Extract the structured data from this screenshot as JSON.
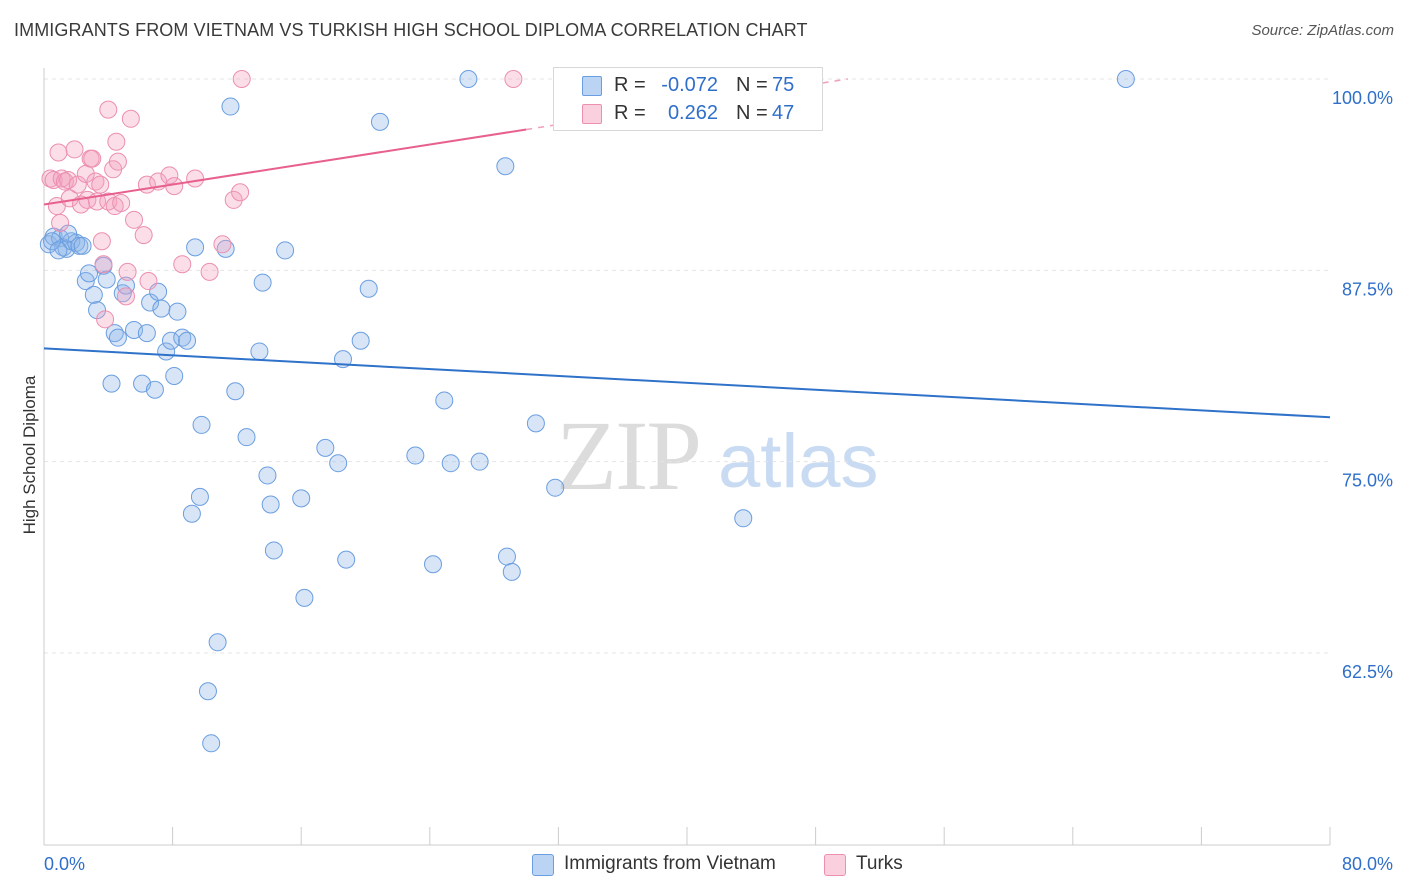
{
  "header": {
    "title": "IMMIGRANTS FROM VIETNAM VS TURKISH HIGH SCHOOL DIPLOMA CORRELATION CHART",
    "source": "Source: ZipAtlas.com"
  },
  "watermark": {
    "zip": "ZIP",
    "atlas": "atlas"
  },
  "legend_box": {
    "rows": [
      {
        "r_label": "R =",
        "r_value": "-0.072",
        "n_label": "N =",
        "n_value": "75",
        "color": "#a8c8f0",
        "border": "#6a9ee0"
      },
      {
        "r_label": "R =",
        "r_value": "0.262",
        "n_label": "N =",
        "n_value": "47",
        "color": "#f8bcd0",
        "border": "#ec8fb0"
      }
    ]
  },
  "bottom_legend": [
    {
      "label": "Immigrants from Vietnam",
      "color": "#a8c8f0",
      "border": "#6a9ee0"
    },
    {
      "label": "Turks",
      "color": "#f8bcd0",
      "border": "#ec8fb0"
    }
  ],
  "colors": {
    "blue": "#2f72c9",
    "pink": "#e8608e",
    "blue_fill": "rgba(140,180,232,0.35)",
    "pink_fill": "rgba(244,160,190,0.35)",
    "grid": "#e4e4e4",
    "tick_label": "#2f6fc9"
  },
  "chart_data": {
    "type": "scatter",
    "title": "IMMIGRANTS FROM VIETNAM VS TURKISH HIGH SCHOOL DIPLOMA CORRELATION CHART",
    "xlabel": "",
    "ylabel": "High School Diploma",
    "xlim": [
      0,
      80
    ],
    "ylim": [
      50,
      102
    ],
    "x_tick_labels": [
      "0.0%",
      "80.0%"
    ],
    "y_ticks": [
      62.5,
      75.0,
      87.5,
      100.0
    ],
    "y_tick_labels": [
      "62.5%",
      "75.0%",
      "87.5%",
      "100.0%"
    ],
    "grid": "horizontal dashed",
    "legend_placement": "bottom",
    "series": [
      {
        "name": "Immigrants from Vietnam",
        "color": "#6a9ee0",
        "trend": {
          "x": [
            0,
            80
          ],
          "y": [
            82.4,
            77.9
          ]
        },
        "points": [
          [
            0.3,
            89.2
          ],
          [
            0.6,
            89.7
          ],
          [
            1.0,
            89.6
          ],
          [
            1.2,
            89.0
          ],
          [
            1.4,
            88.9
          ],
          [
            1.7,
            89.4
          ],
          [
            2.0,
            89.3
          ],
          [
            2.2,
            89.1
          ],
          [
            2.6,
            86.8
          ],
          [
            2.8,
            87.3
          ],
          [
            3.1,
            85.9
          ],
          [
            3.3,
            84.9
          ],
          [
            3.7,
            87.8
          ],
          [
            3.9,
            86.9
          ],
          [
            4.2,
            80.1
          ],
          [
            4.4,
            83.4
          ],
          [
            4.6,
            83.1
          ],
          [
            4.9,
            86.0
          ],
          [
            5.1,
            86.5
          ],
          [
            5.6,
            83.6
          ],
          [
            6.1,
            80.1
          ],
          [
            6.4,
            83.4
          ],
          [
            6.6,
            85.4
          ],
          [
            6.9,
            79.7
          ],
          [
            7.1,
            86.1
          ],
          [
            7.3,
            85.0
          ],
          [
            7.6,
            82.2
          ],
          [
            7.9,
            82.9
          ],
          [
            8.1,
            80.6
          ],
          [
            8.3,
            84.8
          ],
          [
            8.6,
            83.1
          ],
          [
            8.9,
            82.9
          ],
          [
            9.2,
            71.6
          ],
          [
            9.4,
            89.0
          ],
          [
            9.7,
            72.7
          ],
          [
            9.8,
            77.4
          ],
          [
            10.2,
            60.0
          ],
          [
            10.4,
            56.6
          ],
          [
            10.8,
            63.2
          ],
          [
            11.3,
            88.9
          ],
          [
            11.6,
            98.2
          ],
          [
            11.9,
            79.6
          ],
          [
            12.6,
            76.6
          ],
          [
            13.4,
            82.2
          ],
          [
            13.6,
            86.7
          ],
          [
            13.9,
            74.1
          ],
          [
            14.1,
            72.2
          ],
          [
            14.3,
            69.2
          ],
          [
            15.0,
            88.8
          ],
          [
            16.2,
            66.1
          ],
          [
            16.0,
            72.6
          ],
          [
            17.5,
            75.9
          ],
          [
            18.3,
            74.9
          ],
          [
            18.6,
            81.7
          ],
          [
            18.8,
            68.6
          ],
          [
            19.7,
            82.9
          ],
          [
            20.2,
            86.3
          ],
          [
            20.9,
            97.2
          ],
          [
            23.1,
            75.4
          ],
          [
            24.2,
            68.3
          ],
          [
            24.9,
            79.0
          ],
          [
            25.3,
            74.9
          ],
          [
            26.4,
            100.0
          ],
          [
            27.1,
            75.0
          ],
          [
            28.7,
            94.3
          ],
          [
            28.8,
            68.8
          ],
          [
            29.1,
            67.8
          ],
          [
            30.6,
            77.5
          ],
          [
            31.8,
            73.3
          ],
          [
            43.5,
            71.3
          ],
          [
            67.3,
            100.0
          ],
          [
            0.5,
            89.4
          ],
          [
            1.5,
            89.9
          ],
          [
            2.4,
            89.1
          ],
          [
            0.9,
            88.8
          ]
        ]
      },
      {
        "name": "Turks",
        "color": "#ec8fb0",
        "trend": {
          "x": [
            0,
            30
          ],
          "y": [
            91.8,
            96.7
          ]
        },
        "trend_dashed": {
          "x": [
            30,
            50
          ],
          "y": [
            96.7,
            100.0
          ]
        },
        "points": [
          [
            0.4,
            93.5
          ],
          [
            0.6,
            93.4
          ],
          [
            0.8,
            91.7
          ],
          [
            0.9,
            95.2
          ],
          [
            1.1,
            93.5
          ],
          [
            1.3,
            93.3
          ],
          [
            1.5,
            93.4
          ],
          [
            1.6,
            92.2
          ],
          [
            1.9,
            95.4
          ],
          [
            2.1,
            93.1
          ],
          [
            2.3,
            91.8
          ],
          [
            2.6,
            93.8
          ],
          [
            2.7,
            92.1
          ],
          [
            2.9,
            94.8
          ],
          [
            3.0,
            94.8
          ],
          [
            3.2,
            93.3
          ],
          [
            3.3,
            92.0
          ],
          [
            3.5,
            93.1
          ],
          [
            3.6,
            89.4
          ],
          [
            3.7,
            87.9
          ],
          [
            3.8,
            84.3
          ],
          [
            4.0,
            92.0
          ],
          [
            4.0,
            98.0
          ],
          [
            4.3,
            94.1
          ],
          [
            4.4,
            91.7
          ],
          [
            4.5,
            95.9
          ],
          [
            4.6,
            94.6
          ],
          [
            4.8,
            91.9
          ],
          [
            5.1,
            85.8
          ],
          [
            5.4,
            97.4
          ],
          [
            5.6,
            90.8
          ],
          [
            6.2,
            89.8
          ],
          [
            6.4,
            93.1
          ],
          [
            6.5,
            86.8
          ],
          [
            7.1,
            93.3
          ],
          [
            7.8,
            93.7
          ],
          [
            8.1,
            93.0
          ],
          [
            8.6,
            87.9
          ],
          [
            9.4,
            93.5
          ],
          [
            10.3,
            87.4
          ],
          [
            11.1,
            89.2
          ],
          [
            11.8,
            92.1
          ],
          [
            12.2,
            92.6
          ],
          [
            12.3,
            100.0
          ],
          [
            29.2,
            100.0
          ],
          [
            1.0,
            90.6
          ],
          [
            5.2,
            87.4
          ]
        ]
      }
    ]
  }
}
